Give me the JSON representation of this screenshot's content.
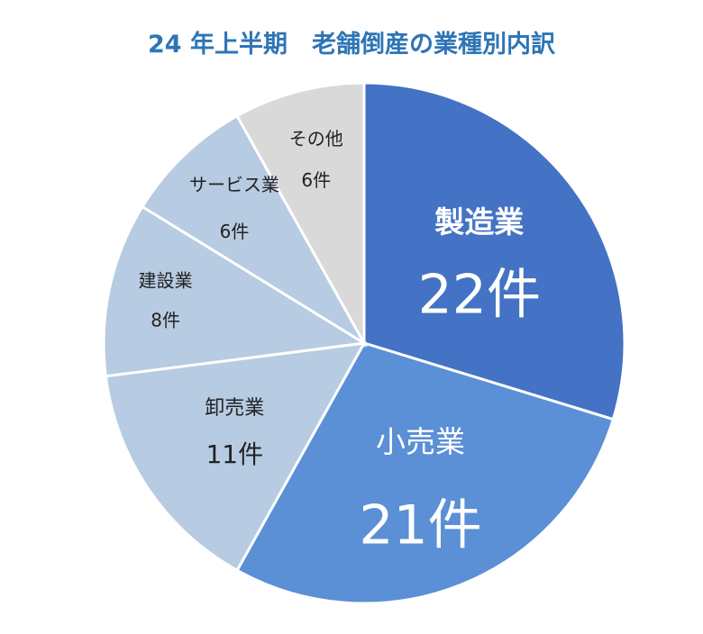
{
  "chart_data": {
    "type": "pie",
    "title": "24 年上半期　老舗倒産の業種別内訳",
    "slices": [
      {
        "label": "製造業",
        "value": 22,
        "value_label": "22件",
        "color": "#4472c4",
        "text_color": "#ffffff"
      },
      {
        "label": "小売業",
        "value": 21,
        "value_label": "21件",
        "color": "#5b8fd6",
        "text_color": "#ffffff"
      },
      {
        "label": "卸売業",
        "value": 11,
        "value_label": "11件",
        "color": "#b7cbe2",
        "text_color": "#222222"
      },
      {
        "label": "建設業",
        "value": 8,
        "value_label": "8件",
        "color": "#b7cbe2",
        "text_color": "#222222"
      },
      {
        "label": "サービス業",
        "value": 6,
        "value_label": "6件",
        "color": "#b7cbe2",
        "text_color": "#222222"
      },
      {
        "label": "その他",
        "value": 6,
        "value_label": "6件",
        "color": "#d9d9d9",
        "text_color": "#222222"
      }
    ],
    "start_angle": "12 o'clock",
    "direction": "clockwise",
    "title_color": "#2e75b6"
  }
}
